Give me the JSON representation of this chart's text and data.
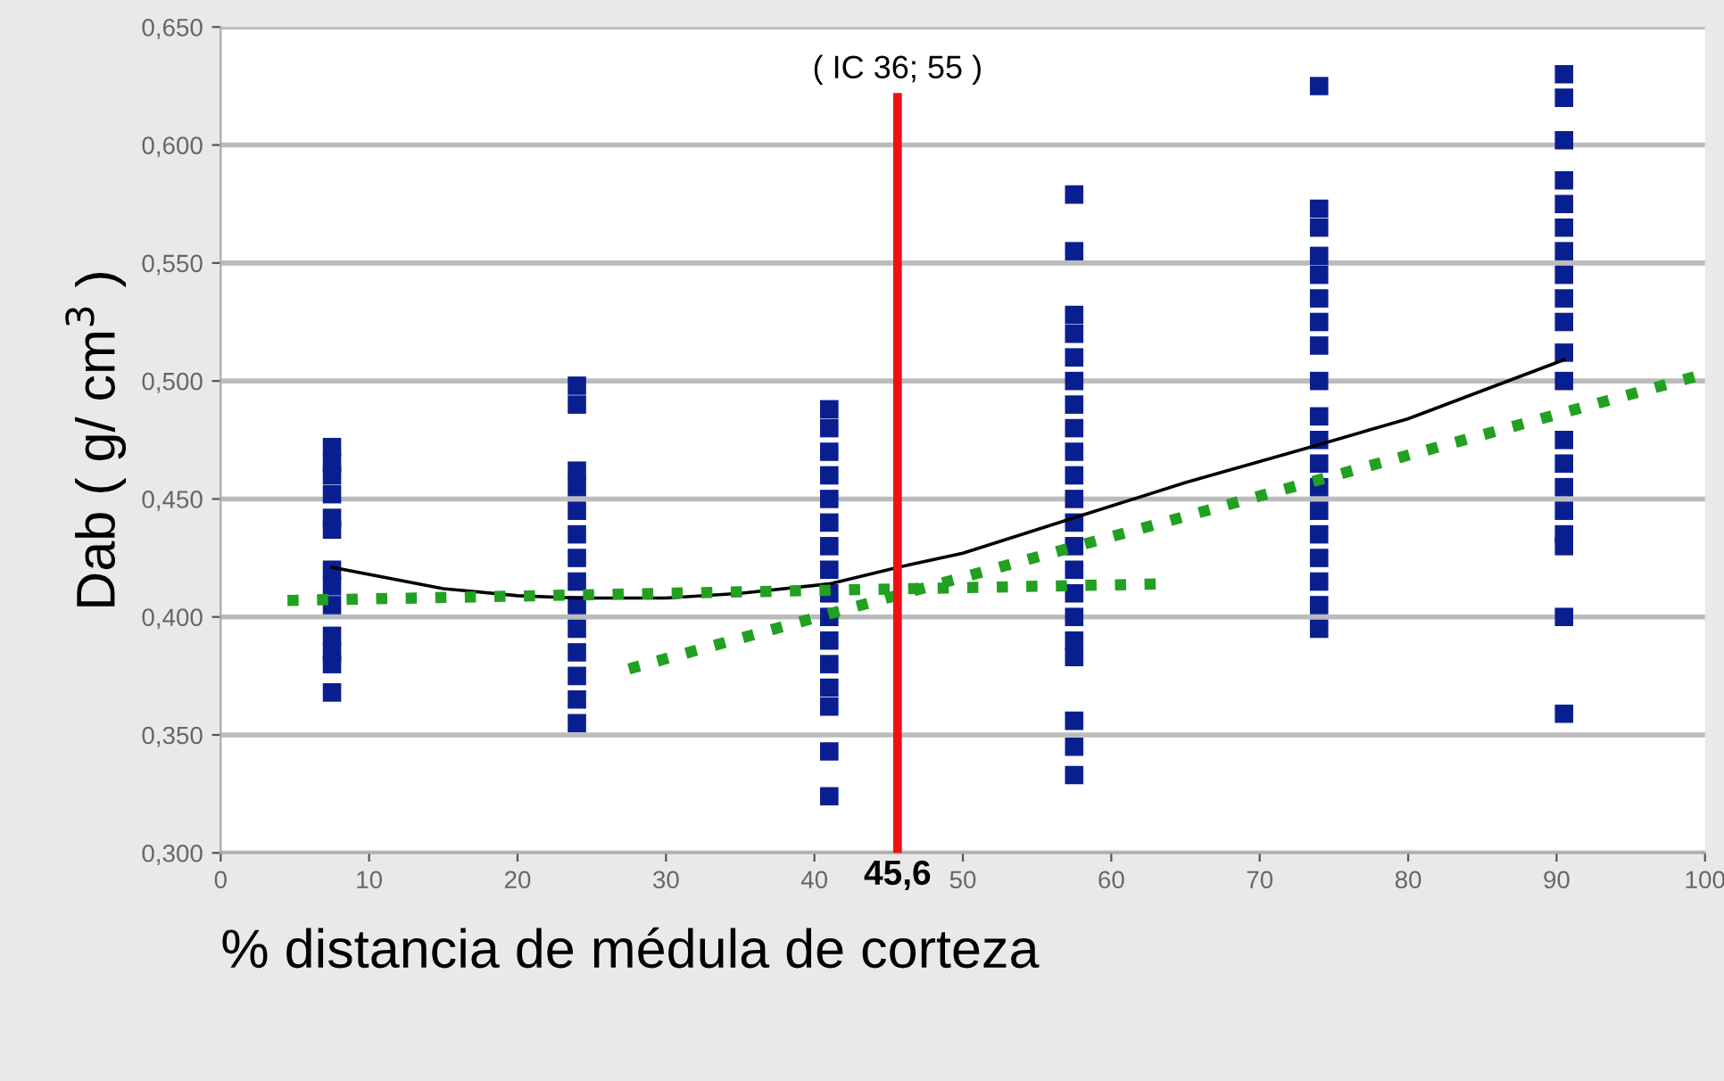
{
  "chart_data": {
    "type": "scatter",
    "xlabel": "% distancia de médula de corteza",
    "ylabel": "Dab ( g/ cm$^{3}$ )",
    "xlim": [
      0,
      100
    ],
    "xticks": [
      0,
      10,
      20,
      30,
      40,
      50,
      60,
      70,
      80,
      90,
      100
    ],
    "ylim": [
      0.3,
      0.65
    ],
    "yticks": [
      {
        "value": 0.3,
        "label": "0,300"
      },
      {
        "value": 0.35,
        "label": "0,350"
      },
      {
        "value": 0.4,
        "label": "0,400"
      },
      {
        "value": 0.45,
        "label": "0,450"
      },
      {
        "value": 0.5,
        "label": "0,500"
      },
      {
        "value": 0.55,
        "label": "0,550"
      },
      {
        "value": 0.6,
        "label": "0,600"
      },
      {
        "value": 0.65,
        "label": "0,650"
      }
    ],
    "grid": "y",
    "marker": "square",
    "series": [
      {
        "color": "#0a1f8f",
        "x": [
          7.5,
          7.5,
          7.5,
          7.5,
          7.5,
          7.5,
          7.5,
          7.5,
          7.5,
          7.5,
          7.5,
          7.5,
          7.5,
          24,
          24,
          24,
          24,
          24,
          24,
          24,
          24,
          24,
          24,
          24,
          24,
          24,
          24,
          41,
          41,
          41,
          41,
          41,
          41,
          41,
          41,
          41,
          41,
          41,
          41,
          41,
          41,
          41,
          41,
          57.5,
          57.5,
          57.5,
          57.5,
          57.5,
          57.5,
          57.5,
          57.5,
          57.5,
          57.5,
          57.5,
          57.5,
          57.5,
          57.5,
          57.5,
          57.5,
          57.5,
          57.5,
          57.5,
          57.5,
          57.5,
          74,
          74,
          74,
          74,
          74,
          74,
          74,
          74,
          74,
          74,
          74,
          74,
          74,
          74,
          74,
          74,
          74,
          74,
          74,
          90.5,
          90.5,
          90.5,
          90.5,
          90.5,
          90.5,
          90.5,
          90.5,
          90.5,
          90.5,
          90.5,
          90.5,
          90.5,
          90.5,
          90.5,
          90.5,
          90.5,
          90.5,
          90.5,
          90.5
        ],
        "values": [
          0.472,
          0.465,
          0.46,
          0.452,
          0.442,
          0.437,
          0.42,
          0.413,
          0.405,
          0.392,
          0.385,
          0.38,
          0.368,
          0.498,
          0.49,
          0.462,
          0.455,
          0.445,
          0.435,
          0.425,
          0.415,
          0.405,
          0.395,
          0.385,
          0.375,
          0.365,
          0.355,
          0.488,
          0.48,
          0.47,
          0.46,
          0.45,
          0.44,
          0.43,
          0.42,
          0.41,
          0.4,
          0.39,
          0.38,
          0.37,
          0.362,
          0.343,
          0.324,
          0.579,
          0.555,
          0.528,
          0.52,
          0.51,
          0.5,
          0.49,
          0.48,
          0.47,
          0.46,
          0.45,
          0.44,
          0.43,
          0.42,
          0.41,
          0.4,
          0.39,
          0.383,
          0.356,
          0.345,
          0.333,
          0.625,
          0.573,
          0.565,
          0.553,
          0.545,
          0.535,
          0.525,
          0.515,
          0.5,
          0.485,
          0.475,
          0.465,
          0.455,
          0.445,
          0.435,
          0.425,
          0.415,
          0.405,
          0.395,
          0.63,
          0.62,
          0.602,
          0.585,
          0.575,
          0.565,
          0.555,
          0.545,
          0.535,
          0.525,
          0.512,
          0.5,
          0.475,
          0.465,
          0.455,
          0.445,
          0.435,
          0.43,
          0.4,
          0.359
        ]
      },
      {
        "type": "line",
        "color": "#000000",
        "line_style": "solid",
        "marker": "none",
        "x": [
          7.5,
          15,
          20,
          24,
          30,
          35,
          41,
          45.6,
          50,
          57.5,
          65,
          74,
          80,
          90.5
        ],
        "values": [
          0.421,
          0.412,
          0.409,
          0.408,
          0.408,
          0.41,
          0.414,
          0.421,
          0.427,
          0.442,
          0.457,
          0.473,
          0.484,
          0.509
        ]
      },
      {
        "type": "line",
        "color": "#22a022",
        "line_style": "dotted",
        "marker": "none",
        "x": [
          4.5,
          63.5
        ],
        "values": [
          0.407,
          0.414
        ]
      },
      {
        "type": "line",
        "color": "#22a022",
        "line_style": "dotted",
        "marker": "none",
        "x": [
          27.5,
          100
        ],
        "values": [
          0.378,
          0.503
        ]
      }
    ],
    "ref_lines": [
      {
        "axis": "x",
        "value": 45.6,
        "label": "45,6",
        "color": "#ee1111"
      }
    ],
    "annotations": [
      "( IC 36; 55 )"
    ]
  }
}
